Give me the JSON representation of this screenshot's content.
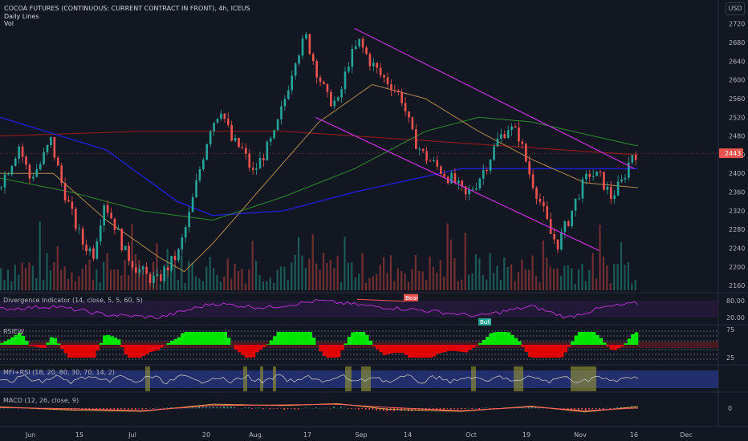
{
  "header": {
    "title": "COCOA FUTURES (CONTINUOUS: CURRENT CONTRACT IN FRONT), 4h, ICEUS",
    "line2": "Daily Lines",
    "line3": "Vol"
  },
  "currency": "USD",
  "price_axis_ticks": [
    "2720",
    "2680",
    "2640",
    "2600",
    "2560",
    "2520",
    "2480",
    "2440",
    "2400",
    "2360",
    "2320",
    "2280",
    "2240",
    "2200",
    "2160"
  ],
  "last_price_label": "2443",
  "panes": {
    "divergence": {
      "label": "Divergence Indicator (14, close, 5, 5, 60, 5)",
      "ticks": [
        "80.00",
        "20.00"
      ],
      "bear_label": "Bear",
      "bull_label": "Bull"
    },
    "rsiew": {
      "label": "RSIEW",
      "ticks": [
        "75",
        "25"
      ]
    },
    "mfirsi": {
      "label": "MFI+RSI (18, 20, 80, 30, 70, 14, 2)"
    },
    "macd": {
      "label": "MACD (12, 26, close, 9)",
      "ticks": [
        "0"
      ]
    }
  },
  "x_axis_labels": [
    "Jun",
    "15",
    "Jul",
    "20",
    "Aug",
    "17",
    "Sep",
    "14",
    "Oct",
    "19",
    "Nov",
    "16",
    "Dec"
  ],
  "colors": {
    "background": "#131722",
    "up_candle": "#26a69a",
    "down_candle": "#ef5350",
    "channel": "#c72fe0",
    "ma_red": "#8b1a1a",
    "ma_blue": "#1e1ec8",
    "ma_green": "#2e8b2e",
    "ma_tan": "#b08a4a",
    "divergence_line": "#b030c8",
    "rsiew_green": "#00e600",
    "rsiew_red": "#e00000",
    "mfi_band": "#2a3a8c",
    "macd_line": "#e8a040",
    "signal_line": "#ff6060"
  },
  "chart_data": {
    "type": "candlestick",
    "title": "COCOA FUTURES (CONTINUOUS: CURRENT CONTRACT IN FRONT), 4h, ICEUS",
    "ylim": [
      2150,
      2740
    ],
    "last_price": 2443,
    "x_axis": [
      "Jun",
      "15",
      "Jul",
      "20",
      "Aug",
      "17",
      "Sep",
      "14",
      "Oct",
      "19",
      "Nov",
      "16",
      "Dec"
    ],
    "close_path": [
      [
        0,
        2370
      ],
      [
        3,
        2410
      ],
      [
        6,
        2460
      ],
      [
        9,
        2390
      ],
      [
        12,
        2420
      ],
      [
        15,
        2470
      ],
      [
        18,
        2380
      ],
      [
        21,
        2310
      ],
      [
        24,
        2250
      ],
      [
        27,
        2230
      ],
      [
        30,
        2340
      ],
      [
        33,
        2290
      ],
      [
        36,
        2230
      ],
      [
        39,
        2200
      ],
      [
        42,
        2180
      ],
      [
        45,
        2170
      ],
      [
        48,
        2200
      ],
      [
        51,
        2230
      ],
      [
        54,
        2310
      ],
      [
        57,
        2410
      ],
      [
        60,
        2500
      ],
      [
        63,
        2540
      ],
      [
        66,
        2470
      ],
      [
        69,
        2450
      ],
      [
        72,
        2400
      ],
      [
        75,
        2440
      ],
      [
        78,
        2480
      ],
      [
        81,
        2560
      ],
      [
        84,
        2650
      ],
      [
        87,
        2690
      ],
      [
        90,
        2620
      ],
      [
        93,
        2560
      ],
      [
        96,
        2550
      ],
      [
        99,
        2640
      ],
      [
        102,
        2680
      ],
      [
        105,
        2640
      ],
      [
        108,
        2610
      ],
      [
        111,
        2590
      ],
      [
        114,
        2560
      ],
      [
        117,
        2480
      ],
      [
        120,
        2440
      ],
      [
        123,
        2420
      ],
      [
        126,
        2400
      ],
      [
        129,
        2380
      ],
      [
        132,
        2350
      ],
      [
        135,
        2380
      ],
      [
        138,
        2420
      ],
      [
        141,
        2470
      ],
      [
        144,
        2500
      ],
      [
        147,
        2480
      ],
      [
        150,
        2400
      ],
      [
        153,
        2340
      ],
      [
        156,
        2270
      ],
      [
        158,
        2250
      ],
      [
        161,
        2300
      ],
      [
        164,
        2360
      ],
      [
        167,
        2400
      ],
      [
        170,
        2390
      ],
      [
        173,
        2350
      ],
      [
        176,
        2380
      ],
      [
        179,
        2443
      ]
    ],
    "channel_upper": [
      [
        100,
        2710
      ],
      [
        179,
        2410
      ]
    ],
    "channel_lower": [
      [
        89,
        2520
      ],
      [
        169,
        2235
      ]
    ],
    "ma_red": [
      [
        0,
        2480
      ],
      [
        40,
        2490
      ],
      [
        80,
        2490
      ],
      [
        120,
        2470
      ],
      [
        179,
        2440
      ]
    ],
    "ma_blue": [
      [
        0,
        2520
      ],
      [
        30,
        2450
      ],
      [
        50,
        2340
      ],
      [
        60,
        2310
      ],
      [
        80,
        2320
      ],
      [
        100,
        2360
      ],
      [
        130,
        2410
      ],
      [
        179,
        2410
      ]
    ],
    "ma_green": [
      [
        0,
        2390
      ],
      [
        20,
        2360
      ],
      [
        40,
        2320
      ],
      [
        60,
        2300
      ],
      [
        80,
        2350
      ],
      [
        100,
        2410
      ],
      [
        120,
        2490
      ],
      [
        135,
        2520
      ],
      [
        150,
        2510
      ],
      [
        179,
        2460
      ]
    ],
    "ma_tan": [
      [
        0,
        2400
      ],
      [
        15,
        2400
      ],
      [
        30,
        2300
      ],
      [
        45,
        2220
      ],
      [
        52,
        2190
      ],
      [
        60,
        2250
      ],
      [
        75,
        2380
      ],
      [
        90,
        2510
      ],
      [
        105,
        2590
      ],
      [
        120,
        2560
      ],
      [
        135,
        2490
      ],
      [
        150,
        2430
      ],
      [
        165,
        2380
      ],
      [
        179,
        2370
      ]
    ],
    "divergence_osc": [
      [
        0,
        50
      ],
      [
        15,
        60
      ],
      [
        30,
        30
      ],
      [
        45,
        20
      ],
      [
        60,
        70
      ],
      [
        75,
        55
      ],
      [
        90,
        80
      ],
      [
        105,
        60
      ],
      [
        120,
        45
      ],
      [
        135,
        25
      ],
      [
        150,
        60
      ],
      [
        160,
        20
      ],
      [
        170,
        55
      ],
      [
        179,
        70
      ]
    ],
    "macd_line": [
      [
        0,
        0.2
      ],
      [
        20,
        -0.3
      ],
      [
        40,
        -0.5
      ],
      [
        60,
        0.6
      ],
      [
        80,
        0.4
      ],
      [
        95,
        0.7
      ],
      [
        110,
        -0.2
      ],
      [
        130,
        -0.5
      ],
      [
        150,
        0.3
      ],
      [
        165,
        -0.6
      ],
      [
        179,
        0.2
      ]
    ],
    "signal_line": [
      [
        0,
        0.1
      ],
      [
        20,
        -0.1
      ],
      [
        40,
        -0.4
      ],
      [
        60,
        0.4
      ],
      [
        80,
        0.5
      ],
      [
        95,
        0.6
      ],
      [
        110,
        0.1
      ],
      [
        130,
        -0.4
      ],
      [
        150,
        0.2
      ],
      [
        165,
        -0.4
      ],
      [
        179,
        0.0
      ]
    ]
  }
}
